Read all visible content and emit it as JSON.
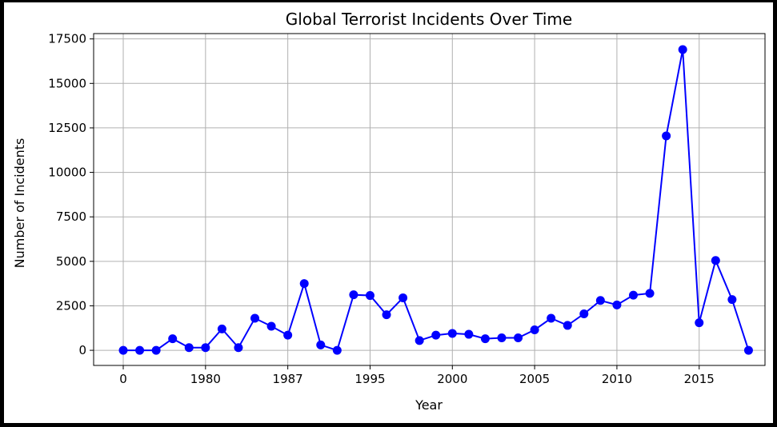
{
  "chart_data": {
    "type": "line",
    "title": "Global Terrorist Incidents Over Time",
    "xlabel": "Year",
    "ylabel": "Number of Incidents",
    "xtick_labels": [
      "0",
      "1980",
      "1987",
      "1995",
      "2000",
      "2005",
      "2010",
      "2015"
    ],
    "xtick_positions": [
      0,
      5,
      10,
      15,
      20,
      25,
      30,
      35
    ],
    "yticks": [
      0,
      2500,
      5000,
      7500,
      10000,
      12500,
      15000,
      17500
    ],
    "xlim": [
      -1.8,
      39.0
    ],
    "ylim": [
      -850,
      17800
    ],
    "grid": true,
    "legend": "none",
    "series": [
      {
        "color": "#0000ff",
        "x": [
          0,
          1,
          2,
          3,
          4,
          5,
          6,
          7,
          8,
          9,
          10,
          11,
          12,
          13,
          14,
          15,
          16,
          17,
          18,
          19,
          20,
          21,
          22,
          23,
          24,
          25,
          26,
          27,
          28,
          29,
          30,
          31,
          32,
          33,
          34,
          35,
          36,
          37,
          38
        ],
        "values": [
          0,
          0,
          0,
          650,
          150,
          150,
          1200,
          150,
          1800,
          1350,
          850,
          3750,
          300,
          0,
          3120,
          3080,
          2000,
          2950,
          550,
          850,
          950,
          900,
          650,
          700,
          700,
          1150,
          1800,
          1400,
          2050,
          2800,
          2550,
          3100,
          3200,
          12050,
          16900,
          1550,
          5050,
          2850,
          0
        ]
      }
    ]
  }
}
